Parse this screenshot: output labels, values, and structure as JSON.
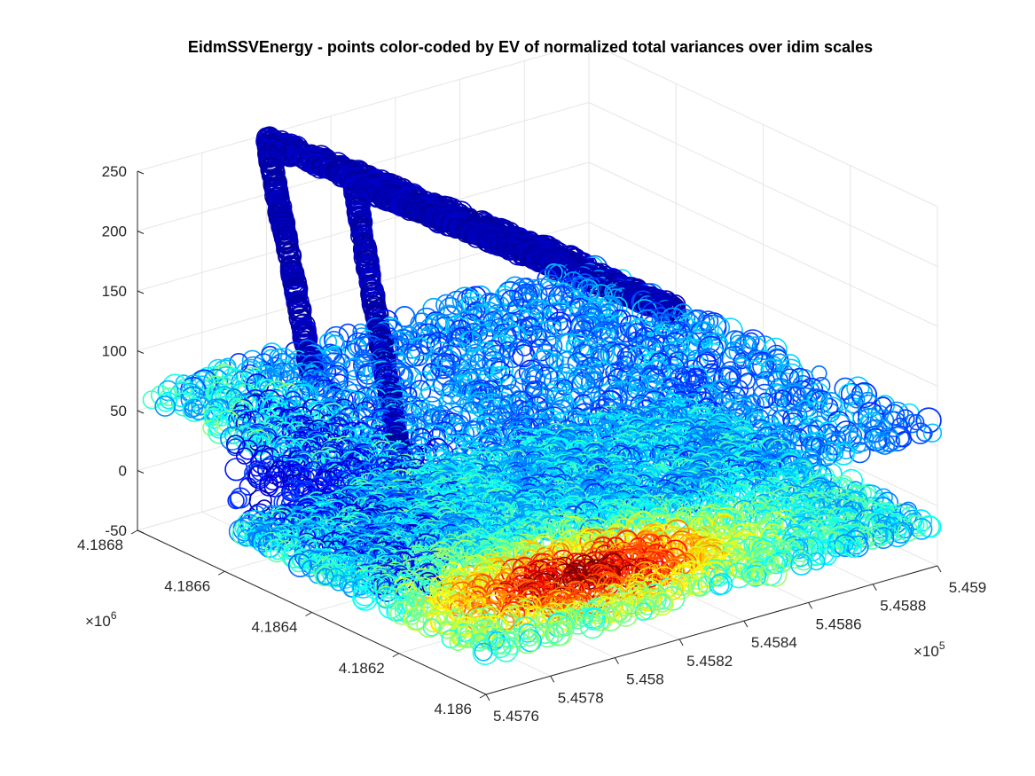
{
  "chart_data": {
    "type": "scatter",
    "title": "EidmSSVEnergy - points color-coded by EV of normalized total variances over idim scales",
    "z_axis": {
      "range": [
        -50,
        250
      ],
      "ticks": [
        "-50",
        "0",
        "50",
        "100",
        "150",
        "200",
        "250"
      ]
    },
    "y_axis": {
      "range": [
        4.186,
        4.1868
      ],
      "ticks": [
        "4.186",
        "4.1862",
        "4.1864",
        "4.1866",
        "4.1868"
      ],
      "multiplier_base": "×10",
      "multiplier_exp": "6"
    },
    "x_axis": {
      "range": [
        5.4576,
        5.459
      ],
      "ticks": [
        "5.4576",
        "5.4578",
        "5.458",
        "5.4582",
        "5.4584",
        "5.4586",
        "5.4588",
        "5.459"
      ],
      "multiplier_base": "×10",
      "multiplier_exp": "5"
    },
    "grid": true,
    "colormap": "jet",
    "marker": "open-circle",
    "structures": [
      {
        "kind": "ground-plane",
        "x": [
          5.4576,
          5.459
        ],
        "y": [
          4.186,
          4.1866
        ],
        "z": -15,
        "hotspot": [
          5.4581,
          4.18615
        ]
      },
      {
        "kind": "mid-plane",
        "x": [
          5.4576,
          5.459
        ],
        "y": [
          4.186,
          4.1868
        ],
        "z": 65
      },
      {
        "kind": "roof-ridge-a",
        "from": [
          5.4576,
          4.1862,
          120
        ],
        "peak": [
          5.458,
          4.1866,
          245
        ],
        "to": [
          5.459,
          4.1866,
          60
        ]
      },
      {
        "kind": "roof-ridge-b",
        "from": [
          5.4576,
          4.1864,
          150
        ],
        "peak": [
          5.458,
          4.1868,
          245
        ],
        "to": [
          5.459,
          4.1868,
          60
        ]
      }
    ]
  }
}
